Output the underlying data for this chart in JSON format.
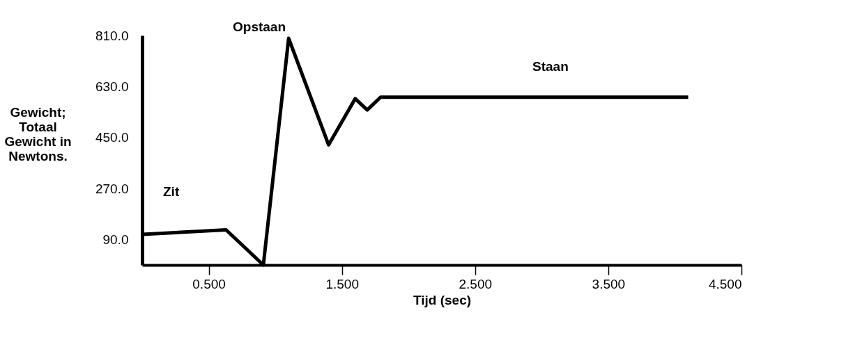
{
  "chart_data": {
    "type": "line",
    "xlabel": "Tijd (sec)",
    "ylabel": "Gewicht; Totaal Gewicht in Newtons.",
    "x": [
      0,
      0.63,
      0.91,
      1.1,
      1.4,
      1.6,
      1.69,
      1.79,
      4.1
    ],
    "series": [
      {
        "color": "#000000",
        "values": [
          108,
          124,
          0,
          800,
          424,
          587,
          547,
          592,
          592
        ]
      }
    ],
    "xlim": [
      0,
      4.5
    ],
    "xticks": [
      {
        "value": 0.5,
        "label": "0.500"
      },
      {
        "value": 1.5,
        "label": "1.500"
      },
      {
        "value": 2.5,
        "label": "2.500"
      },
      {
        "value": 3.5,
        "label": "3.500"
      },
      {
        "value": 4.5,
        "label": "4.500"
      }
    ],
    "ylim": [
      0,
      810
    ],
    "yticks": [
      {
        "value": 90,
        "label": "90.0"
      },
      {
        "value": 270,
        "label": "270.0"
      },
      {
        "value": 450,
        "label": "450.0"
      },
      {
        "value": 630,
        "label": "630.0"
      },
      {
        "value": 810,
        "label": "810.0"
      }
    ],
    "annotations": [
      "Zit",
      "Opstaan",
      "Staan"
    ],
    "grid": false,
    "marker": "none",
    "line_style": "solid"
  }
}
